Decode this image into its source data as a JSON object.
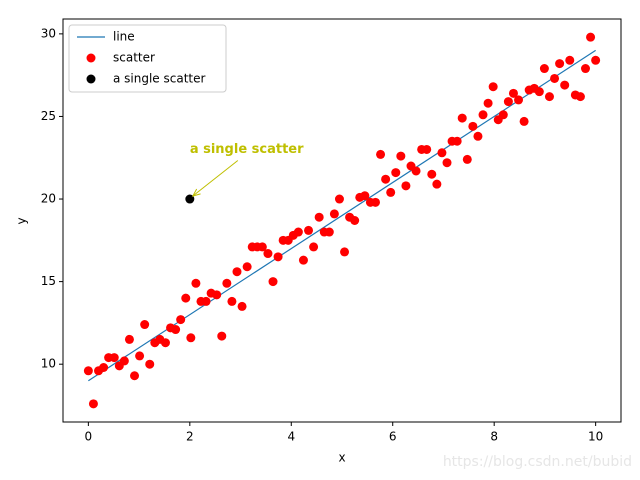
{
  "chart_data": {
    "type": "scatter",
    "xlabel": "x",
    "ylabel": "y",
    "xlim": [
      -0.5,
      10.5
    ],
    "ylim": [
      6.5,
      30.9
    ],
    "xticks": [
      0,
      2,
      4,
      6,
      8,
      10
    ],
    "yticks": [
      10,
      15,
      20,
      25,
      30
    ],
    "legend": "upper left",
    "series": [
      {
        "name": "line",
        "type": "line",
        "color": "#1f77b4",
        "x": [
          0,
          10
        ],
        "values": [
          9,
          29
        ]
      },
      {
        "name": "scatter",
        "type": "scatter",
        "color": "#ff0000",
        "x": [
          0.0,
          0.1,
          0.2,
          0.3,
          0.4,
          0.51,
          0.61,
          0.71,
          0.81,
          0.91,
          1.01,
          1.11,
          1.21,
          1.31,
          1.41,
          1.52,
          1.62,
          1.72,
          1.82,
          1.92,
          2.02,
          2.12,
          2.22,
          2.32,
          2.42,
          2.53,
          2.63,
          2.73,
          2.83,
          2.93,
          3.03,
          3.13,
          3.23,
          3.33,
          3.43,
          3.54,
          3.64,
          3.74,
          3.84,
          3.94,
          4.04,
          4.14,
          4.24,
          4.34,
          4.44,
          4.55,
          4.65,
          4.75,
          4.85,
          4.95,
          5.05,
          5.15,
          5.25,
          5.35,
          5.45,
          5.56,
          5.66,
          5.76,
          5.86,
          5.96,
          6.06,
          6.16,
          6.26,
          6.36,
          6.46,
          6.57,
          6.67,
          6.77,
          6.87,
          6.97,
          7.07,
          7.17,
          7.27,
          7.37,
          7.47,
          7.58,
          7.68,
          7.78,
          7.88,
          7.98,
          8.08,
          8.18,
          8.28,
          8.38,
          8.48,
          8.59,
          8.69,
          8.79,
          8.89,
          8.99,
          9.09,
          9.19,
          9.29,
          9.39,
          9.49,
          9.6,
          9.7,
          9.8,
          9.9,
          10.0
        ],
        "values": [
          9.6,
          7.6,
          9.6,
          9.8,
          10.4,
          10.4,
          9.9,
          10.2,
          11.5,
          9.3,
          10.5,
          12.4,
          10.0,
          11.3,
          11.5,
          11.3,
          12.2,
          12.1,
          12.7,
          14.0,
          11.6,
          14.9,
          13.8,
          13.8,
          14.3,
          14.2,
          11.7,
          14.9,
          13.8,
          15.6,
          13.5,
          15.9,
          17.1,
          17.1,
          17.1,
          16.7,
          15.0,
          16.5,
          17.5,
          17.5,
          17.8,
          18.0,
          16.3,
          18.1,
          17.1,
          18.9,
          18.0,
          18.0,
          19.1,
          20.0,
          16.8,
          18.9,
          18.7,
          20.1,
          20.2,
          19.8,
          19.8,
          22.7,
          21.2,
          20.4,
          21.6,
          22.6,
          20.8,
          22.0,
          21.7,
          23.0,
          23.0,
          21.5,
          20.9,
          22.8,
          22.2,
          23.5,
          23.5,
          24.9,
          22.4,
          24.4,
          23.8,
          25.1,
          25.8,
          26.8,
          24.8,
          25.1,
          25.9,
          26.4,
          26.0,
          24.7,
          26.6,
          26.7,
          26.5,
          27.9,
          26.2,
          27.3,
          28.2,
          26.9,
          28.4,
          26.3,
          26.2,
          27.9,
          29.8,
          28.4
        ]
      },
      {
        "name": "a single scatter",
        "type": "scatter",
        "color": "#000000",
        "x": [
          2
        ],
        "values": [
          20
        ]
      }
    ],
    "annotation": {
      "text": "a single scatter",
      "color": "#bfbf00",
      "x": 2,
      "y": 20,
      "text_x": 2,
      "text_y": 23
    },
    "watermark": "https://blog.csdn.net/bubid"
  }
}
